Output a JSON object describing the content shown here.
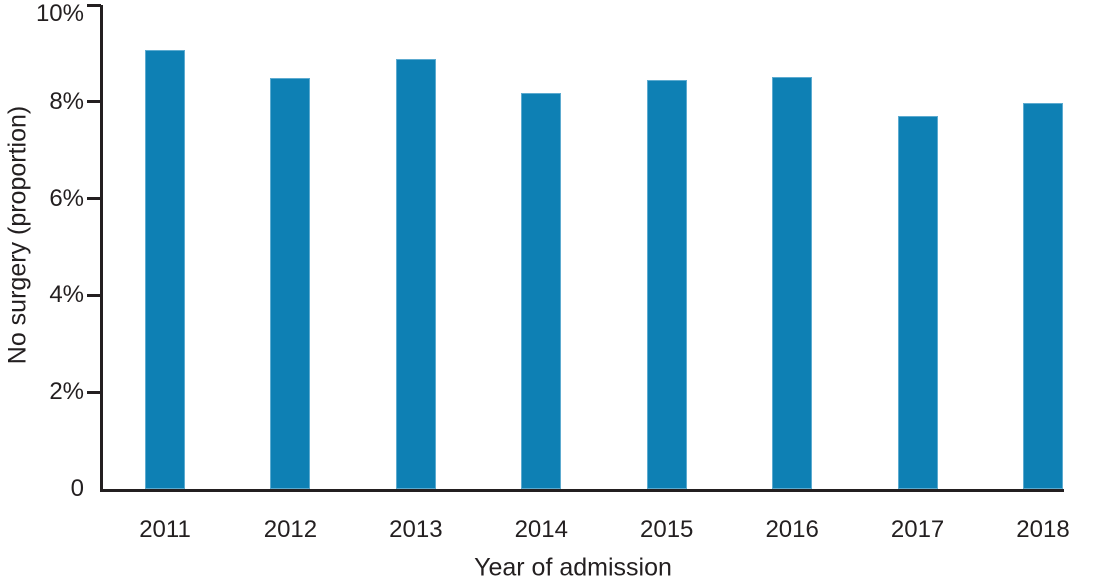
{
  "chart_data": {
    "type": "bar",
    "title": "",
    "xlabel": "Year of admission",
    "ylabel": "No surgery (proportion)",
    "categories": [
      "2011",
      "2012",
      "2013",
      "2014",
      "2015",
      "2016",
      "2017",
      "2018"
    ],
    "values": [
      9.07,
      8.49,
      8.88,
      8.18,
      8.46,
      8.51,
      7.71,
      7.98
    ],
    "ylim": [
      0,
      10
    ],
    "yticks": [
      {
        "value": 0,
        "label": "0"
      },
      {
        "value": 2,
        "label": "2%"
      },
      {
        "value": 4,
        "label": "4%"
      },
      {
        "value": 6,
        "label": "6%"
      },
      {
        "value": 8,
        "label": "8%"
      },
      {
        "value": 10,
        "label": "10%"
      }
    ],
    "grid": false,
    "legend": null,
    "bar_color": "#0e80b4",
    "axis_color": "#231f20",
    "text_color": "#231f20",
    "background_color": "#ffffff"
  }
}
